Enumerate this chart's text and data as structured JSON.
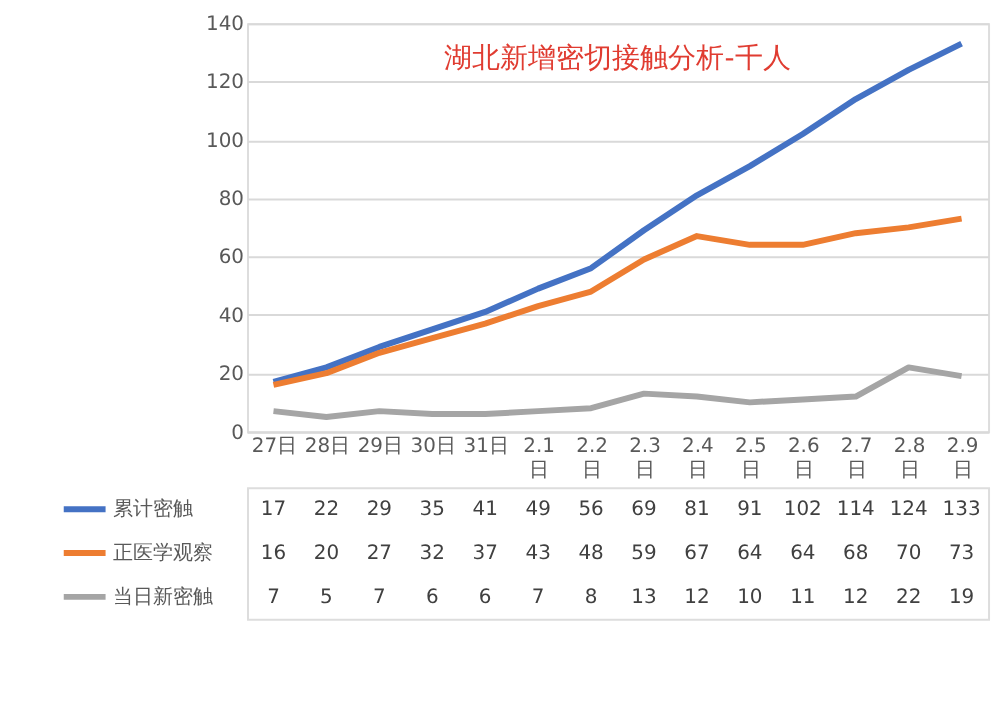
{
  "chart_data": {
    "type": "line",
    "title": "湖北新增密切接触分析-千人",
    "categories": [
      "27日",
      "28日",
      "29日",
      "30日",
      "31日",
      "2.1日",
      "2.2日",
      "2.3日",
      "2.4日",
      "2.5日",
      "2.6日",
      "2.7日",
      "2.8日",
      "2.9日"
    ],
    "series": [
      {
        "name": "累计密触",
        "color": "#4472c4",
        "values": [
          17,
          22,
          29,
          35,
          41,
          49,
          56,
          69,
          81,
          91,
          102,
          114,
          124,
          133
        ]
      },
      {
        "name": "正医学观察",
        "color": "#ed7d31",
        "values": [
          16,
          20,
          27,
          32,
          37,
          43,
          48,
          59,
          67,
          64,
          64,
          68,
          70,
          73
        ]
      },
      {
        "name": "当日新密触",
        "color": "#a5a5a5",
        "values": [
          7,
          5,
          7,
          6,
          6,
          7,
          8,
          13,
          12,
          10,
          11,
          12,
          22,
          19
        ]
      }
    ],
    "ylim": [
      0,
      140
    ],
    "yticks": [
      0,
      20,
      40,
      60,
      80,
      100,
      120,
      140
    ],
    "grid": "y",
    "legend": "bottom",
    "data_labels": true,
    "marker": "none",
    "line_style": "solid"
  }
}
